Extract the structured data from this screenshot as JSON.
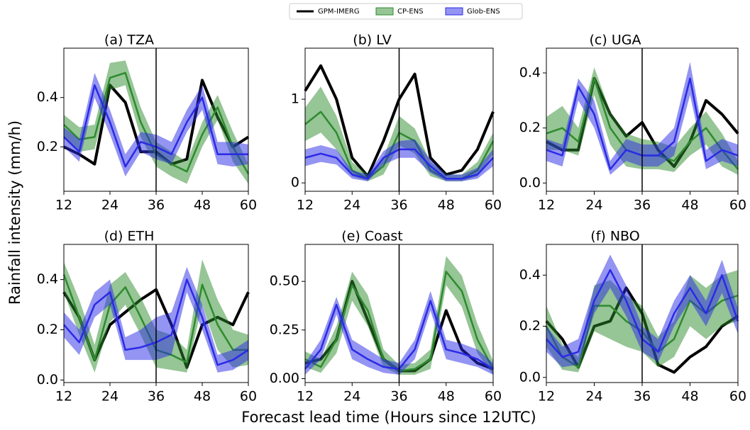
{
  "xlabel": "Forecast lead time (Hours since 12UTC)",
  "ylabel": "Rainfall intensity (mm/h)",
  "legend": [
    {
      "name": "GPM-IMERG",
      "color": "#000000"
    },
    {
      "name": "CP-ENS",
      "color": "#2e8b2e"
    },
    {
      "name": "Glob-ENS",
      "color": "#2a2ae6"
    }
  ],
  "chart_data": [
    {
      "type": "line",
      "title": "(a) TZA",
      "x": [
        12,
        16,
        20,
        24,
        28,
        32,
        36,
        40,
        44,
        48,
        52,
        56,
        60
      ],
      "xlim": [
        12,
        60
      ],
      "xticks": [
        12,
        24,
        36,
        48,
        60
      ],
      "vline": 36,
      "ylim": [
        0.02,
        0.6
      ],
      "yticks": [
        0.2,
        0.4
      ],
      "series": [
        {
          "values": [
            0.2,
            0.17,
            0.13,
            0.45,
            0.38,
            0.18,
            0.18,
            0.13,
            0.15,
            0.47,
            0.32,
            0.2,
            0.24
          ]
        },
        {
          "values": [
            0.29,
            0.23,
            0.24,
            0.48,
            0.5,
            0.3,
            0.17,
            0.13,
            0.1,
            0.25,
            0.36,
            0.2,
            0.09
          ],
          "lower": [
            0.24,
            0.18,
            0.19,
            0.43,
            0.45,
            0.24,
            0.12,
            0.08,
            0.05,
            0.2,
            0.31,
            0.14,
            0.05
          ],
          "upper": [
            0.33,
            0.28,
            0.29,
            0.54,
            0.55,
            0.36,
            0.22,
            0.18,
            0.14,
            0.3,
            0.41,
            0.26,
            0.13
          ]
        },
        {
          "values": [
            0.24,
            0.18,
            0.45,
            0.3,
            0.12,
            0.22,
            0.2,
            0.17,
            0.3,
            0.4,
            0.17,
            0.17,
            0.17
          ],
          "lower": [
            0.2,
            0.14,
            0.4,
            0.25,
            0.08,
            0.18,
            0.15,
            0.13,
            0.26,
            0.35,
            0.13,
            0.12,
            0.13
          ],
          "upper": [
            0.28,
            0.23,
            0.5,
            0.35,
            0.17,
            0.26,
            0.25,
            0.22,
            0.35,
            0.45,
            0.22,
            0.22,
            0.21
          ]
        }
      ]
    },
    {
      "type": "line",
      "title": "(b) LV",
      "x": [
        12,
        16,
        20,
        24,
        28,
        32,
        36,
        40,
        44,
        48,
        52,
        56,
        60
      ],
      "xlim": [
        12,
        60
      ],
      "xticks": [
        12,
        24,
        36,
        48,
        60
      ],
      "vline": 36,
      "ylim": [
        -0.1,
        1.61
      ],
      "yticks": [
        0,
        1
      ],
      "series": [
        {
          "values": [
            1.1,
            1.4,
            1.0,
            0.3,
            0.08,
            0.5,
            1.0,
            1.3,
            0.3,
            0.1,
            0.15,
            0.4,
            0.85
          ]
        },
        {
          "values": [
            0.7,
            0.85,
            0.6,
            0.15,
            0.05,
            0.2,
            0.6,
            0.5,
            0.15,
            0.05,
            0.05,
            0.15,
            0.5
          ],
          "lower": [
            0.5,
            0.6,
            0.4,
            0.08,
            0.02,
            0.1,
            0.45,
            0.35,
            0.08,
            0.02,
            0.02,
            0.08,
            0.35
          ],
          "upper": [
            0.9,
            1.15,
            0.8,
            0.25,
            0.1,
            0.3,
            0.8,
            0.65,
            0.25,
            0.1,
            0.1,
            0.25,
            0.6
          ]
        },
        {
          "values": [
            0.3,
            0.35,
            0.3,
            0.1,
            0.05,
            0.3,
            0.4,
            0.4,
            0.2,
            0.05,
            0.05,
            0.1,
            0.3
          ],
          "lower": [
            0.2,
            0.25,
            0.22,
            0.05,
            0.02,
            0.22,
            0.3,
            0.3,
            0.12,
            0.02,
            0.02,
            0.05,
            0.2
          ],
          "upper": [
            0.4,
            0.45,
            0.4,
            0.15,
            0.1,
            0.38,
            0.5,
            0.52,
            0.28,
            0.1,
            0.1,
            0.18,
            0.4
          ]
        }
      ]
    },
    {
      "type": "line",
      "title": "(c) UGA",
      "x": [
        12,
        16,
        20,
        24,
        28,
        32,
        36,
        40,
        44,
        48,
        52,
        56,
        60
      ],
      "xlim": [
        12,
        60
      ],
      "xticks": [
        12,
        24,
        36,
        48,
        60
      ],
      "vline": 36,
      "ylim": [
        -0.03,
        0.49
      ],
      "yticks": [
        {
          "value": 0,
          "label": "0.0"
        },
        0.2,
        0.4
      ],
      "series": [
        {
          "values": [
            0.15,
            0.12,
            0.12,
            0.38,
            0.25,
            0.17,
            0.22,
            0.12,
            0.06,
            0.15,
            0.3,
            0.25,
            0.18
          ]
        },
        {
          "values": [
            0.18,
            0.2,
            0.15,
            0.38,
            0.2,
            0.12,
            0.1,
            0.1,
            0.08,
            0.15,
            0.2,
            0.12,
            0.05
          ],
          "lower": [
            0.12,
            0.12,
            0.1,
            0.32,
            0.14,
            0.06,
            0.05,
            0.05,
            0.04,
            0.1,
            0.14,
            0.06,
            0.03
          ],
          "upper": [
            0.24,
            0.28,
            0.2,
            0.42,
            0.26,
            0.18,
            0.16,
            0.15,
            0.13,
            0.2,
            0.26,
            0.18,
            0.08
          ]
        },
        {
          "values": [
            0.12,
            0.1,
            0.35,
            0.25,
            0.05,
            0.12,
            0.1,
            0.1,
            0.15,
            0.38,
            0.08,
            0.12,
            0.1
          ],
          "lower": [
            0.08,
            0.06,
            0.3,
            0.2,
            0.03,
            0.08,
            0.06,
            0.06,
            0.1,
            0.32,
            0.05,
            0.08,
            0.06
          ],
          "upper": [
            0.16,
            0.14,
            0.38,
            0.3,
            0.08,
            0.16,
            0.14,
            0.14,
            0.2,
            0.44,
            0.12,
            0.16,
            0.14
          ]
        }
      ]
    },
    {
      "type": "line",
      "title": "(d) ETH",
      "x": [
        12,
        16,
        20,
        24,
        28,
        32,
        36,
        40,
        44,
        48,
        52,
        56,
        60
      ],
      "xlim": [
        12,
        60
      ],
      "xticks": [
        12,
        24,
        36,
        48,
        60
      ],
      "vline": 36,
      "ylim": [
        -0.01,
        0.54
      ],
      "yticks": [
        {
          "value": 0,
          "label": "0.0"
        },
        0.2,
        0.4
      ],
      "series": [
        {
          "values": [
            0.35,
            0.25,
            0.08,
            0.22,
            0.27,
            0.32,
            0.36,
            0.22,
            0.05,
            0.22,
            0.25,
            0.22,
            0.35
          ]
        },
        {
          "values": [
            0.42,
            0.25,
            0.08,
            0.3,
            0.37,
            0.25,
            0.12,
            0.1,
            0.07,
            0.38,
            0.22,
            0.12,
            0.12
          ],
          "lower": [
            0.35,
            0.18,
            0.03,
            0.23,
            0.3,
            0.18,
            0.05,
            0.04,
            0.03,
            0.3,
            0.12,
            0.05,
            0.06
          ],
          "upper": [
            0.47,
            0.32,
            0.14,
            0.38,
            0.43,
            0.33,
            0.2,
            0.18,
            0.12,
            0.48,
            0.32,
            0.2,
            0.18
          ]
        },
        {
          "values": [
            0.22,
            0.15,
            0.3,
            0.35,
            0.12,
            0.13,
            0.15,
            0.18,
            0.4,
            0.25,
            0.06,
            0.08,
            0.12
          ],
          "lower": [
            0.17,
            0.1,
            0.25,
            0.3,
            0.08,
            0.08,
            0.08,
            0.1,
            0.35,
            0.2,
            0.03,
            0.04,
            0.08
          ],
          "upper": [
            0.27,
            0.2,
            0.35,
            0.4,
            0.17,
            0.2,
            0.25,
            0.27,
            0.45,
            0.3,
            0.1,
            0.12,
            0.16
          ]
        }
      ]
    },
    {
      "type": "line",
      "title": "(e) Coast",
      "x": [
        12,
        16,
        20,
        24,
        28,
        32,
        36,
        40,
        44,
        48,
        52,
        56,
        60
      ],
      "xlim": [
        12,
        60
      ],
      "xticks": [
        12,
        24,
        36,
        48,
        60
      ],
      "vline": 36,
      "ylim": [
        -0.02,
        0.69
      ],
      "yticks": [
        {
          "value": 0,
          "label": "0.00"
        },
        {
          "value": 0.25,
          "label": "0.25"
        },
        {
          "value": 0.5,
          "label": "0.50"
        }
      ],
      "series": [
        {
          "values": [
            0.08,
            0.1,
            0.2,
            0.5,
            0.3,
            0.1,
            0.04,
            0.04,
            0.1,
            0.35,
            0.15,
            0.08,
            0.05
          ]
        },
        {
          "values": [
            0.1,
            0.06,
            0.2,
            0.48,
            0.35,
            0.1,
            0.04,
            0.05,
            0.1,
            0.55,
            0.45,
            0.2,
            0.05
          ],
          "lower": [
            0.06,
            0.03,
            0.13,
            0.4,
            0.27,
            0.06,
            0.02,
            0.02,
            0.05,
            0.48,
            0.37,
            0.13,
            0.02
          ],
          "upper": [
            0.14,
            0.1,
            0.27,
            0.55,
            0.43,
            0.15,
            0.07,
            0.08,
            0.15,
            0.63,
            0.53,
            0.28,
            0.09
          ]
        },
        {
          "values": [
            0.05,
            0.15,
            0.38,
            0.15,
            0.1,
            0.06,
            0.05,
            0.15,
            0.4,
            0.15,
            0.13,
            0.1,
            0.05
          ],
          "lower": [
            0.02,
            0.1,
            0.33,
            0.1,
            0.06,
            0.03,
            0.02,
            0.1,
            0.35,
            0.1,
            0.08,
            0.06,
            0.02
          ],
          "upper": [
            0.08,
            0.2,
            0.42,
            0.2,
            0.15,
            0.1,
            0.08,
            0.2,
            0.45,
            0.2,
            0.18,
            0.15,
            0.08
          ]
        }
      ]
    },
    {
      "type": "line",
      "title": "(f) NBO",
      "x": [
        12,
        16,
        20,
        24,
        28,
        32,
        36,
        40,
        44,
        48,
        52,
        56,
        60
      ],
      "xlim": [
        12,
        60
      ],
      "xticks": [
        12,
        24,
        36,
        48,
        60
      ],
      "vline": 36,
      "ylim": [
        -0.02,
        0.52
      ],
      "yticks": [
        {
          "value": 0,
          "label": "0.0"
        },
        0.2,
        0.4
      ],
      "series": [
        {
          "values": [
            0.22,
            0.15,
            0.04,
            0.2,
            0.22,
            0.35,
            0.25,
            0.05,
            0.02,
            0.08,
            0.12,
            0.2,
            0.24
          ]
        },
        {
          "values": [
            0.2,
            0.08,
            0.04,
            0.28,
            0.28,
            0.22,
            0.18,
            0.1,
            0.15,
            0.3,
            0.25,
            0.3,
            0.32
          ],
          "lower": [
            0.12,
            0.03,
            0.02,
            0.18,
            0.15,
            0.12,
            0.1,
            0.04,
            0.08,
            0.2,
            0.15,
            0.2,
            0.22
          ],
          "upper": [
            0.28,
            0.13,
            0.08,
            0.36,
            0.38,
            0.32,
            0.28,
            0.16,
            0.22,
            0.4,
            0.35,
            0.4,
            0.42
          ]
        },
        {
          "values": [
            0.15,
            0.08,
            0.1,
            0.3,
            0.42,
            0.3,
            0.15,
            0.1,
            0.25,
            0.35,
            0.25,
            0.4,
            0.22
          ],
          "lower": [
            0.1,
            0.04,
            0.05,
            0.25,
            0.35,
            0.24,
            0.1,
            0.06,
            0.2,
            0.3,
            0.2,
            0.33,
            0.17
          ],
          "upper": [
            0.2,
            0.12,
            0.15,
            0.35,
            0.48,
            0.36,
            0.2,
            0.15,
            0.3,
            0.4,
            0.3,
            0.46,
            0.27
          ]
        }
      ]
    }
  ]
}
